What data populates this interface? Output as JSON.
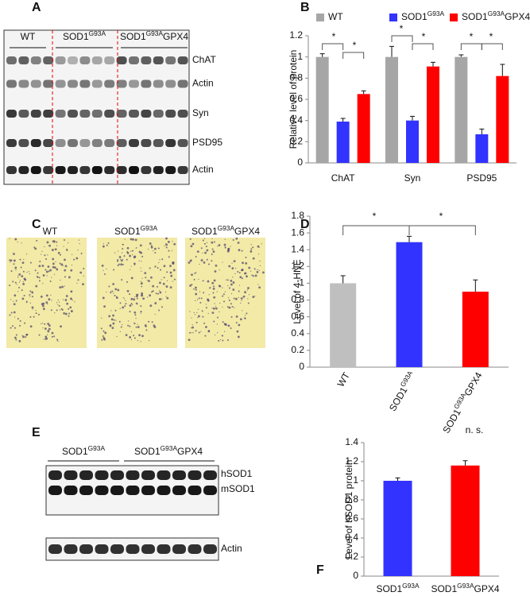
{
  "panel_labels": [
    "A",
    "B",
    "C",
    "D",
    "E",
    "F"
  ],
  "blot_A": {
    "groups": [
      "WT",
      {
        "text": "SOD1",
        "sup": "G93A"
      },
      {
        "text": "SOD1",
        "sup": "G93A",
        "tail": "GPX4"
      }
    ],
    "rows": [
      "ChAT",
      "Actin",
      "Syn",
      "PSD95",
      "Actin"
    ]
  },
  "histology_C": {
    "labels": [
      "WT",
      {
        "text": "SOD1",
        "sup": "G93A"
      },
      {
        "text": "SOD1",
        "sup": "G93A",
        "tail": "GPX4"
      }
    ]
  },
  "blot_E": {
    "groups": [
      {
        "text": "SOD1",
        "sup": "G93A"
      },
      {
        "text": "SOD1",
        "sup": "G93A",
        "tail": "GPX4"
      }
    ],
    "bands": [
      "hSOD1",
      "mSOD1",
      "Actin"
    ]
  },
  "chart_data": [
    {
      "type": "bar",
      "y_label": "Relative level of protein",
      "categories": [
        "ChAT",
        "Syn",
        "PSD95"
      ],
      "series": [
        {
          "name": "WT",
          "color": "#a6a6a6",
          "values": [
            1.0,
            1.0,
            1.0
          ],
          "errors": [
            0.03,
            0.1,
            0.02
          ]
        },
        {
          "name": {
            "text": "SOD1",
            "sup": "G93A"
          },
          "color": "#3333ff",
          "values": [
            0.39,
            0.4,
            0.27
          ],
          "errors": [
            0.03,
            0.04,
            0.05
          ]
        },
        {
          "name": {
            "text": "SOD1",
            "sup": "G93A",
            "tail": "GPX4"
          },
          "color": "#ff0000",
          "values": [
            0.65,
            0.91,
            0.82
          ],
          "errors": [
            0.03,
            0.04,
            0.11
          ]
        }
      ],
      "ylim": [
        0,
        1.2
      ],
      "yticks": [
        0,
        0.2,
        0.4,
        0.6,
        0.8,
        1,
        1.2
      ],
      "annotations": [
        "*",
        "*",
        "*",
        "*",
        "*",
        "*"
      ]
    },
    {
      "type": "bar",
      "y_label": "Level of 4-HNE",
      "categories": [
        "WT",
        {
          "text": "SOD1",
          "sup": "G93A"
        },
        {
          "text": "SOD1",
          "sup": "G93A",
          "tail": "GPX4"
        }
      ],
      "values": [
        1.0,
        1.49,
        0.9
      ],
      "errors": [
        0.09,
        0.07,
        0.14
      ],
      "colors": [
        "#bfbfbf",
        "#3333ff",
        "#ff0000"
      ],
      "ylim": [
        0,
        1.8
      ],
      "yticks": [
        0,
        0.2,
        0.4,
        0.6,
        0.8,
        1,
        1.2,
        1.4,
        1.6,
        1.8
      ],
      "annotations": [
        "*",
        "*"
      ]
    },
    {
      "type": "bar",
      "y_label": "Level of hSOD1 protein",
      "categories": [
        {
          "text": "SOD1",
          "sup": "G93A"
        },
        {
          "text": "SOD1",
          "sup": "G93A",
          "tail": "GPX4"
        }
      ],
      "values": [
        1.0,
        1.16
      ],
      "errors": [
        0.03,
        0.05
      ],
      "colors": [
        "#3333ff",
        "#ff0000"
      ],
      "ylim": [
        0,
        1.4
      ],
      "yticks": [
        0,
        0.2,
        0.4,
        0.6,
        0.8,
        1,
        1.2,
        1.4
      ],
      "annotations": [
        "n. s."
      ]
    }
  ]
}
